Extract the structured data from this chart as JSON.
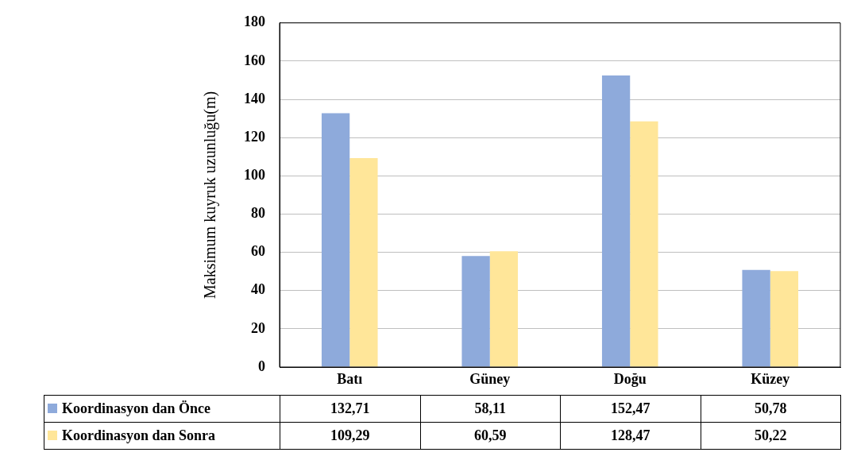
{
  "chart_data": {
    "type": "bar",
    "ylabel": "Maksimum kuyruk uzunluğu(m)",
    "categories": [
      "Batı",
      "Güney",
      "Doğu",
      "Küzey"
    ],
    "series": [
      {
        "name": "Koordinasyon dan Önce",
        "color": "#8eaadb",
        "values": [
          132.71,
          58.11,
          152.47,
          50.78
        ],
        "value_labels": [
          "132,71",
          "58,11",
          "152,47",
          "50,78"
        ]
      },
      {
        "name": "Koordinasyon dan Sonra",
        "color": "#ffe699",
        "values": [
          109.29,
          60.59,
          128.47,
          50.22
        ],
        "value_labels": [
          "109,29",
          "60,59",
          "128,47",
          "50,22"
        ]
      }
    ],
    "ylim": [
      0,
      180
    ],
    "yticks": [
      0,
      20,
      40,
      60,
      80,
      100,
      120,
      140,
      160,
      180
    ],
    "grid": "y",
    "legend": "bottom"
  }
}
